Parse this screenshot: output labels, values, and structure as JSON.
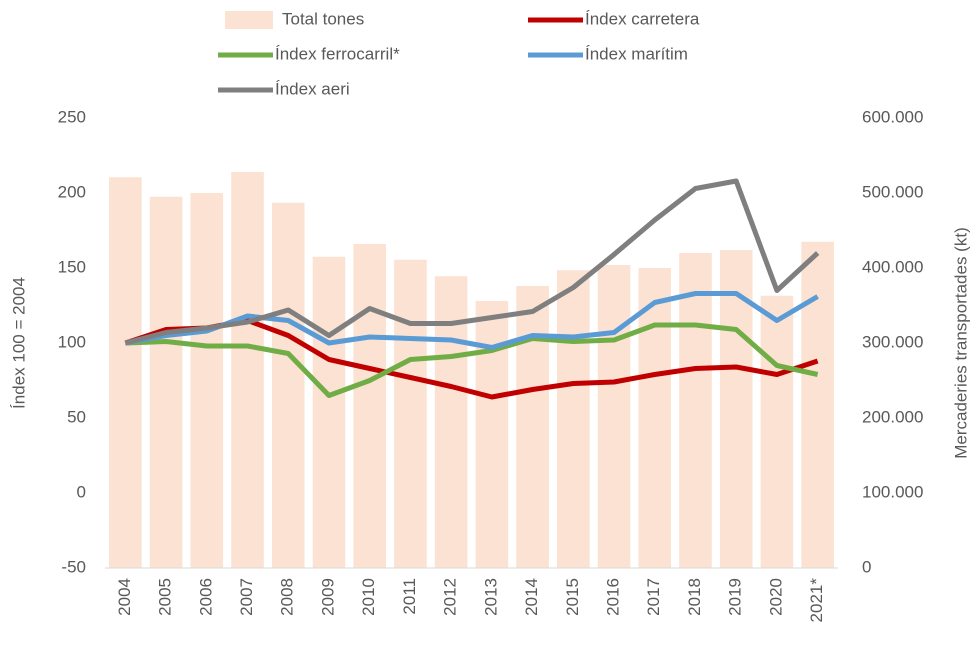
{
  "chart_data": {
    "type": "line",
    "categories": [
      "2004",
      "2005",
      "2006",
      "2007",
      "2008",
      "2009",
      "2010",
      "2011",
      "2012",
      "2013",
      "2014",
      "2015",
      "2016",
      "2017",
      "2018",
      "2019",
      "2020",
      "2021*"
    ],
    "series": [
      {
        "name": "Total tones",
        "type": "bar",
        "axis": "y2",
        "color": "#fbe2d2",
        "values": [
          521000,
          495000,
          500000,
          528000,
          487000,
          415000,
          432000,
          411000,
          389000,
          356000,
          376000,
          397000,
          404000,
          400000,
          420000,
          424000,
          363000,
          435000
        ]
      },
      {
        "name": "Índex carretera",
        "color": "#c00000",
        "values": [
          100,
          109,
          110,
          115,
          105,
          89,
          83,
          77,
          71,
          64,
          69,
          73,
          74,
          79,
          83,
          84,
          79,
          88
        ]
      },
      {
        "name": "Índex ferrocarril*",
        "color": "#70ad47",
        "values": [
          100,
          101,
          98,
          98,
          93,
          65,
          75,
          89,
          91,
          95,
          103,
          101,
          102,
          112,
          112,
          109,
          85,
          79
        ]
      },
      {
        "name": "Índex marítim",
        "color": "#5b9bd5",
        "values": [
          100,
          105,
          108,
          118,
          115,
          100,
          104,
          103,
          102,
          97,
          105,
          104,
          107,
          127,
          133,
          133,
          115,
          131
        ]
      },
      {
        "name": "Índex aeri",
        "color": "#7f7f7f",
        "values": [
          100,
          107,
          110,
          114,
          122,
          105,
          123,
          113,
          113,
          117,
          121,
          137,
          159,
          182,
          203,
          208,
          135,
          160
        ]
      }
    ],
    "ylabel": "Índex 100 = 2004",
    "y2label": "Mercaderies transportades (kt)",
    "ylim": [
      -50,
      250
    ],
    "yticks": [
      -50,
      0,
      50,
      100,
      150,
      200,
      250
    ],
    "y2lim": [
      0,
      600000
    ],
    "y2ticks": [
      0,
      {
        "value": 100000,
        "label": "100.000"
      },
      {
        "value": 200000,
        "label": "200.000"
      },
      {
        "value": 300000,
        "label": "300.000"
      },
      {
        "value": 400000,
        "label": "400.000"
      },
      {
        "value": 500000,
        "label": "500.000"
      },
      {
        "value": 600000,
        "label": "600.000"
      }
    ],
    "legend": "top"
  }
}
